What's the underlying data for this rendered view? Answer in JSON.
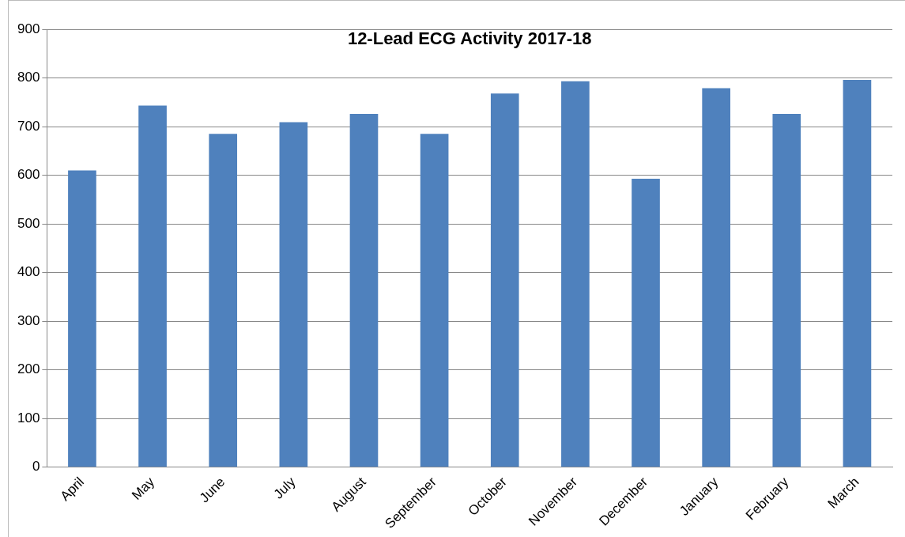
{
  "chart_data": {
    "type": "bar",
    "title": "12-Lead ECG Activity 2017-18",
    "categories": [
      "April",
      "May",
      "June",
      "July",
      "August",
      "September",
      "October",
      "November",
      "December",
      "January",
      "February",
      "March"
    ],
    "values": [
      610,
      743,
      685,
      709,
      726,
      685,
      768,
      793,
      593,
      779,
      726,
      796
    ],
    "color": "#4f81bd",
    "ylim": [
      0,
      900
    ],
    "yticks": [
      0,
      100,
      200,
      300,
      400,
      500,
      600,
      700,
      800,
      900
    ],
    "grid": "y",
    "legend": false
  }
}
